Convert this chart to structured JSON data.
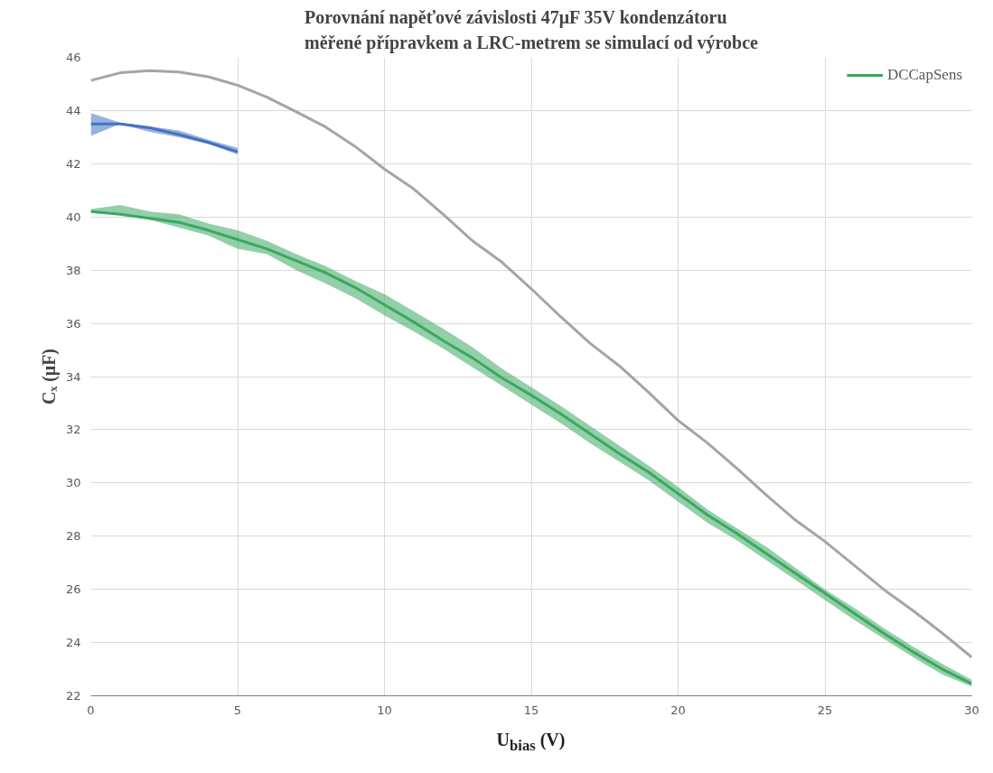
{
  "chart_data": {
    "type": "line",
    "title": "Porovnání napěťové závislosti 47μF 35V kondenzátoru\nměřené přípravkem a LRC-metrem se simulací od výrobce",
    "xlabel": "U$_{bias}$ (V)",
    "ylabel": "Cₓ (μF)",
    "x": [
      0,
      1,
      2,
      3,
      4,
      5,
      6,
      7,
      8,
      9,
      10,
      11,
      12,
      13,
      14,
      15,
      16,
      17,
      18,
      19,
      20,
      21,
      22,
      23,
      24,
      25,
      26,
      27,
      28,
      29,
      30
    ],
    "series": [
      {
        "color": "#a5a5a5",
        "values": [
          45.13,
          45.42,
          45.5,
          45.45,
          45.27,
          44.95,
          44.5,
          43.95,
          43.38,
          42.65,
          41.8,
          41.05,
          40.1,
          39.1,
          38.3,
          37.3,
          36.25,
          35.25,
          34.4,
          33.4,
          32.35,
          31.5,
          30.55,
          29.55,
          28.6,
          27.8,
          26.9,
          26.0,
          25.2,
          24.35,
          23.45
        ]
      },
      {
        "name": "DCCapSens",
        "color": "#3aa860",
        "values": [
          40.2,
          40.1,
          39.95,
          39.8,
          39.5,
          39.15,
          38.8,
          38.35,
          37.9,
          37.35,
          36.7,
          36.05,
          35.35,
          34.7,
          33.95,
          33.3,
          32.6,
          31.85,
          31.1,
          30.4,
          29.6,
          28.8,
          28.1,
          27.35,
          26.6,
          25.85,
          25.1,
          24.35,
          23.65,
          23.0,
          22.45
        ],
        "lower": [
          40.15,
          40.1,
          39.9,
          39.6,
          39.3,
          38.8,
          38.6,
          38.0,
          37.5,
          36.95,
          36.3,
          35.7,
          35.05,
          34.35,
          33.65,
          32.95,
          32.25,
          31.5,
          30.8,
          30.1,
          29.3,
          28.5,
          27.85,
          27.1,
          26.35,
          25.6,
          24.85,
          24.15,
          23.45,
          22.8,
          22.35
        ],
        "upper": [
          40.3,
          40.45,
          40.2,
          40.1,
          39.75,
          39.5,
          39.1,
          38.6,
          38.15,
          37.6,
          37.1,
          36.45,
          35.8,
          35.1,
          34.3,
          33.6,
          32.9,
          32.15,
          31.4,
          30.65,
          29.85,
          29.0,
          28.3,
          27.6,
          26.8,
          26.0,
          25.3,
          24.55,
          23.85,
          23.2,
          22.6
        ]
      },
      {
        "color": "#4472c4",
        "x": [
          0,
          1,
          2,
          3,
          4,
          5
        ],
        "values": [
          43.5,
          43.5,
          43.35,
          43.1,
          42.8,
          42.45
        ],
        "lower": [
          43.05,
          43.5,
          43.2,
          43.0,
          42.75,
          42.35
        ],
        "upper": [
          43.9,
          43.55,
          43.4,
          43.25,
          42.9,
          42.6
        ]
      }
    ],
    "xlim": [
      0,
      30
    ],
    "xticks": [
      0,
      5,
      10,
      15,
      20,
      25,
      30
    ],
    "ylim": [
      22,
      46
    ],
    "yticks": [
      22,
      24,
      26,
      28,
      30,
      32,
      34,
      36,
      38,
      40,
      42,
      44,
      46
    ],
    "grid": true,
    "legend": "top right",
    "marker": "none",
    "line_style": "solid"
  }
}
